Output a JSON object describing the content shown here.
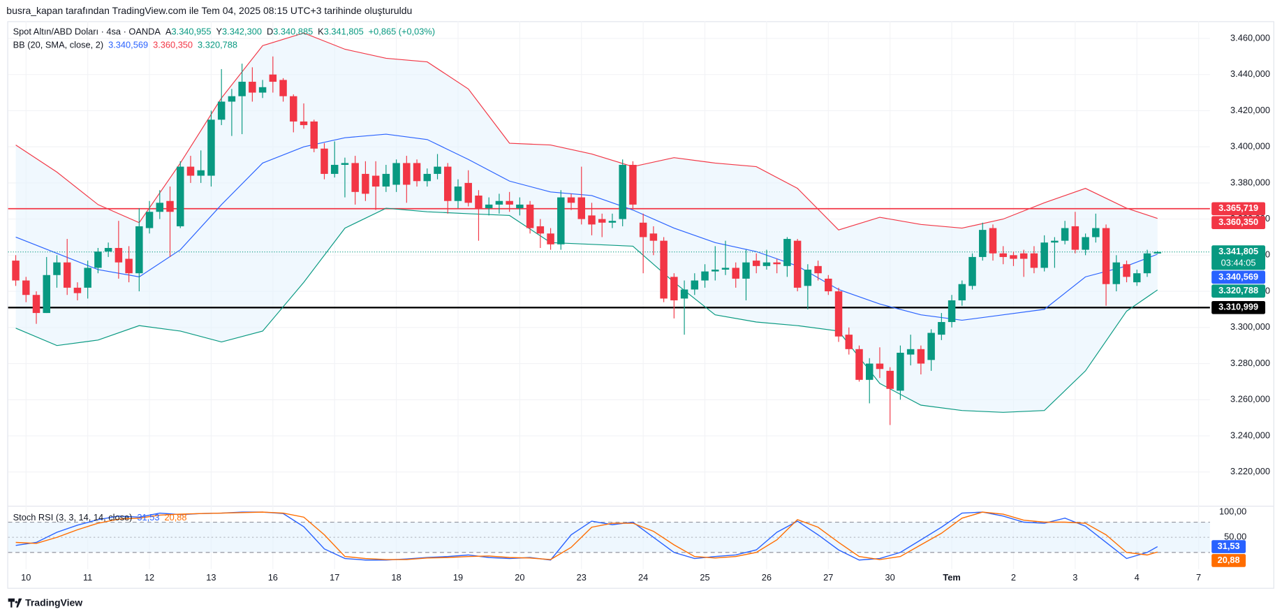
{
  "header": "busra_kapan tarafından TradingView.com ile Tem 04, 2025 08:15 UTC+3 tarihinde oluşturuldu",
  "footer": "TradingView",
  "chart_data": {
    "type": "candlestick",
    "title": "Spot Altın/ABD Doları · 4sa · OANDA",
    "ohlc_legend": [
      {
        "key": "A",
        "text": "3.340,955"
      },
      {
        "key": "Y",
        "text": "3.342,300"
      },
      {
        "key": "D",
        "text": "3.340,885"
      },
      {
        "key": "K",
        "text": "3.341,805"
      }
    ],
    "change": "+0,865 (+0,03%)",
    "up_color": "#089981",
    "down_color": "#f23645",
    "open": [
      3337,
      3326,
      3318,
      3308,
      3329,
      3336,
      3322,
      3322,
      3333,
      3342,
      3344,
      3338,
      3330,
      3355,
      3364,
      3370,
      3356,
      3389,
      3384,
      3384,
      3415,
      3425,
      3428,
      3436,
      3430,
      3440,
      3437,
      3428,
      3414,
      3414,
      3399,
      3385,
      3390,
      3391,
      3385,
      3384,
      3378,
      3379,
      3391,
      3391,
      3381,
      3385,
      3389,
      3370,
      3380,
      3373,
      3366,
      3368,
      3370,
      3366,
      3368,
      3356,
      3352,
      3346,
      3372,
      3372,
      3362,
      3360,
      3358,
      3360,
      3390,
      3358,
      3352,
      3348,
      3328,
      3316,
      3321,
      3326,
      3331,
      3332,
      3333,
      3327,
      3337,
      3334,
      3336,
      3334,
      3348,
      3323,
      3334,
      3327,
      3320,
      3296,
      3288,
      3271,
      3280,
      3276,
      3265,
      3285,
      3288,
      3282,
      3296,
      3303,
      3315,
      3323,
      3339,
      3355,
      3341,
      3340,
      3341,
      3341,
      3333,
      3347,
      3348,
      3356,
      3343,
      3350,
      3355,
      3324,
      3335,
      3325,
      3330,
      3340.955
    ],
    "high": [
      3340,
      3328,
      3320,
      3339,
      3340,
      3349,
      3325,
      3337,
      3344,
      3347,
      3359,
      3345,
      3366,
      3370,
      3376,
      3378,
      3392,
      3395,
      3398,
      3420,
      3443,
      3432,
      3446,
      3444,
      3437,
      3450,
      3438,
      3429,
      3424,
      3415,
      3402,
      3403,
      3394,
      3395,
      3392,
      3392,
      3390,
      3393,
      3395,
      3393,
      3388,
      3396,
      3391,
      3382,
      3387,
      3376,
      3372,
      3374,
      3375,
      3372,
      3370,
      3360,
      3355,
      3376,
      3374,
      3389,
      3369,
      3363,
      3363,
      3393,
      3392,
      3363,
      3356,
      3350,
      3330,
      3326,
      3330,
      3335,
      3345,
      3348,
      3336,
      3343,
      3341,
      3343,
      3338,
      3350,
      3349,
      3335,
      3337,
      3329,
      3322,
      3300,
      3290,
      3283,
      3289,
      3278,
      3290,
      3296,
      3290,
      3299,
      3308,
      3318,
      3326,
      3341,
      3358,
      3357,
      3345,
      3342,
      3343,
      3345,
      3351,
      3350,
      3359,
      3364,
      3352,
      3363,
      3357,
      3340,
      3337,
      3332,
      3343,
      3342.3
    ],
    "low": [
      3323,
      3314,
      3302,
      3308,
      3322,
      3318,
      3315,
      3316,
      3330,
      3339,
      3327,
      3325,
      3320,
      3352,
      3360,
      3339,
      3355,
      3380,
      3380,
      3378,
      3412,
      3406,
      3407,
      3425,
      3427,
      3430,
      3425,
      3408,
      3410,
      3397,
      3382,
      3383,
      3372,
      3368,
      3370,
      3365,
      3375,
      3375,
      3369,
      3378,
      3378,
      3382,
      3363,
      3366,
      3367,
      3348,
      3362,
      3363,
      3364,
      3362,
      3352,
      3344,
      3343,
      3343,
      3365,
      3357,
      3351,
      3350,
      3355,
      3356,
      3366,
      3330,
      3340,
      3314,
      3305,
      3296,
      3318,
      3322,
      3326,
      3329,
      3322,
      3315,
      3330,
      3332,
      3330,
      3328,
      3320,
      3310,
      3326,
      3318,
      3292,
      3285,
      3270,
      3258,
      3272,
      3246,
      3260,
      3279,
      3274,
      3276,
      3293,
      3300,
      3312,
      3321,
      3337,
      3337,
      3335,
      3334,
      3328,
      3330,
      3331,
      3333,
      3346,
      3341,
      3340,
      3347,
      3312,
      3320,
      3325,
      3323,
      3328,
      3340.885
    ],
    "close": [
      3326,
      3318,
      3308,
      3329,
      3336,
      3322,
      3319,
      3333,
      3342,
      3344,
      3336,
      3330,
      3356,
      3364,
      3369,
      3364,
      3389,
      3384,
      3387,
      3415,
      3425,
      3428,
      3436,
      3430,
      3433,
      3436,
      3428,
      3414,
      3412,
      3399,
      3385,
      3390,
      3391,
      3375,
      3374,
      3378,
      3385,
      3391,
      3379,
      3381,
      3385,
      3389,
      3370,
      3378,
      3369,
      3366,
      3368,
      3370,
      3368,
      3368,
      3355,
      3352,
      3346,
      3372,
      3369,
      3360,
      3357,
      3358,
      3359,
      3390,
      3368,
      3350,
      3348,
      3316,
      3315,
      3321,
      3326,
      3331,
      3332,
      3333,
      3327,
      3336,
      3334,
      3336,
      3335,
      3349,
      3322,
      3332,
      3330,
      3320,
      3295,
      3288,
      3271,
      3280,
      3277,
      3266,
      3286,
      3288,
      3280,
      3297,
      3303,
      3315,
      3324,
      3339,
      3354,
      3341,
      3339,
      3338,
      3338,
      3333,
      3347,
      3348,
      3355,
      3343,
      3350,
      3355,
      3324,
      3336,
      3328,
      3330,
      3341,
      3341.805
    ],
    "xlim": [
      -0.74,
      116.1
    ],
    "xticks": [
      {
        "value": 1,
        "label": "10"
      },
      {
        "value": 7,
        "label": "11"
      },
      {
        "value": 13,
        "label": "12"
      },
      {
        "value": 19,
        "label": "13"
      },
      {
        "value": 25,
        "label": "16"
      },
      {
        "value": 31,
        "label": "17"
      },
      {
        "value": 37,
        "label": "18"
      },
      {
        "value": 43,
        "label": "19"
      },
      {
        "value": 49,
        "label": "20"
      },
      {
        "value": 55,
        "label": "23"
      },
      {
        "value": 61,
        "label": "24"
      },
      {
        "value": 67,
        "label": "25"
      },
      {
        "value": 73,
        "label": "26"
      },
      {
        "value": 79,
        "label": "27"
      },
      {
        "value": 85,
        "label": "30"
      },
      {
        "value": 91,
        "label": "Tem"
      },
      {
        "value": 97,
        "label": "2"
      },
      {
        "value": 103,
        "label": "3"
      },
      {
        "value": 109,
        "label": "4"
      },
      {
        "value": 115,
        "label": "7"
      }
    ],
    "ylim": [
      3201.5,
      3469.5
    ],
    "yticks": [
      {
        "value": 3460,
        "label": "3.460,000"
      },
      {
        "value": 3440,
        "label": "3.440,000"
      },
      {
        "value": 3420,
        "label": "3.420,000"
      },
      {
        "value": 3400,
        "label": "3.400,000"
      },
      {
        "value": 3380,
        "label": "3.380,000"
      },
      {
        "value": 3360,
        "label": "3.360,000"
      },
      {
        "value": 3340,
        "label": "3.340,000"
      },
      {
        "value": 3320,
        "label": "3.320,000"
      },
      {
        "value": 3300,
        "label": "3.300,000"
      },
      {
        "value": 3280,
        "label": "3.280,000"
      },
      {
        "value": 3260,
        "label": "3.260,000"
      },
      {
        "value": 3240,
        "label": "3.240,000"
      },
      {
        "value": 3220,
        "label": "3.220,000"
      }
    ],
    "grid": true,
    "bb": {
      "name": "BB (20, SMA, close, 2)",
      "fill": "#e3f2fd",
      "x": [
        0,
        4,
        8,
        12,
        16,
        20,
        24,
        28,
        32,
        36,
        40,
        44,
        48,
        52,
        56,
        60,
        64,
        68,
        72,
        76,
        80,
        84,
        88,
        92,
        96,
        100,
        104,
        108,
        111
      ],
      "series": [
        {
          "color": "#2962ff",
          "legend_label": "3.340,569",
          "values": [
            3350,
            3341,
            3332,
            3328,
            3343,
            3368,
            3391,
            3400,
            3405,
            3407,
            3404,
            3393,
            3381,
            3375,
            3373,
            3365,
            3355,
            3347,
            3342,
            3334,
            3321,
            3313,
            3307,
            3304,
            3307,
            3310,
            3328,
            3334,
            3340.569
          ]
        },
        {
          "color": "#f23645",
          "legend_label": "3.360,350",
          "values": [
            3401,
            3386,
            3368,
            3358,
            3391,
            3427,
            3456,
            3463,
            3454,
            3449,
            3447,
            3432,
            3402,
            3401,
            3396,
            3389,
            3394,
            3391,
            3389,
            3377,
            3354,
            3361,
            3357,
            3355,
            3360,
            3369,
            3377,
            3366,
            3360.35
          ]
        },
        {
          "color": "#089981",
          "legend_label": "3.320,788",
          "values": [
            3299.6,
            3290,
            3293,
            3301,
            3298,
            3292,
            3298,
            3325,
            3355,
            3366,
            3364,
            3363,
            3362,
            3347,
            3346,
            3345,
            3325,
            3307,
            3303,
            3301,
            3298,
            3269,
            3257,
            3254,
            3253,
            3254,
            3276,
            3309,
            3320.788
          ]
        }
      ]
    },
    "hlines": [
      {
        "value": 3365.719,
        "color": "#f23645"
      },
      {
        "value": 3310.999,
        "color": "#000000"
      }
    ],
    "last_price_line": {
      "value": 3341.805,
      "color": "#089981"
    },
    "price_labels": [
      {
        "value": 3365.719,
        "label": "3.365,719",
        "color": "#f23645"
      },
      {
        "value": 3360.35,
        "label": "3.360,350",
        "color": "#f23645"
      },
      {
        "value": 3341.805,
        "label": "3.341,805",
        "color": "#089981",
        "countdown": "03:44:05"
      },
      {
        "value": 3340.569,
        "label": "3.340,569",
        "color": "#2962ff"
      },
      {
        "value": 3320.788,
        "label": "3.320,788",
        "color": "#089981"
      },
      {
        "value": 3310.999,
        "label": "3.310,999",
        "color": "#000000"
      }
    ],
    "stoch": {
      "title": "Stoch RSI (3, 3, 14, 14, close)",
      "band_color": "#e3f2fd",
      "x": [
        0,
        2,
        4,
        6,
        8,
        10,
        12,
        14,
        16,
        18,
        20,
        22,
        24,
        26,
        28,
        30,
        32,
        34,
        36,
        38,
        40,
        42,
        44,
        46,
        48,
        50,
        52,
        54,
        56,
        58,
        60,
        62,
        64,
        66,
        68,
        70,
        72,
        74,
        76,
        78,
        80,
        82,
        84,
        86,
        88,
        90,
        92,
        94,
        96,
        98,
        100,
        102,
        104,
        106,
        108,
        110,
        111
      ],
      "series": [
        {
          "color": "#2962ff",
          "legend_label": "31,53",
          "values": [
            34,
            40,
            60,
            74,
            85,
            92,
            90,
            98,
            95,
            97,
            98,
            100,
            100,
            97,
            71,
            27,
            8,
            5,
            5,
            7,
            10,
            12,
            15,
            10,
            8,
            10,
            5,
            55,
            82,
            75,
            80,
            50,
            20,
            8,
            12,
            15,
            25,
            60,
            82,
            55,
            25,
            5,
            8,
            20,
            45,
            70,
            98,
            100,
            92,
            80,
            78,
            88,
            72,
            40,
            8,
            20,
            31.53
          ]
        },
        {
          "color": "#ff6d00",
          "legend_label": "20,88",
          "values": [
            40,
            38,
            50,
            65,
            78,
            86,
            88,
            94,
            96,
            97,
            98,
            99,
            100,
            98,
            90,
            55,
            12,
            8,
            6,
            6,
            9,
            10,
            12,
            13,
            10,
            9,
            6,
            30,
            70,
            78,
            78,
            62,
            35,
            12,
            9,
            12,
            20,
            45,
            85,
            70,
            40,
            12,
            6,
            12,
            35,
            58,
            88,
            100,
            96,
            84,
            80,
            80,
            78,
            55,
            20,
            15,
            20.88
          ]
        }
      ],
      "ylim": [
        -13,
        110
      ],
      "yticks": [
        {
          "value": 100,
          "label": "100,00"
        },
        {
          "value": 50,
          "label": "50,00"
        }
      ],
      "levels": [
        80,
        50,
        20
      ],
      "band": [
        20,
        80
      ]
    }
  }
}
